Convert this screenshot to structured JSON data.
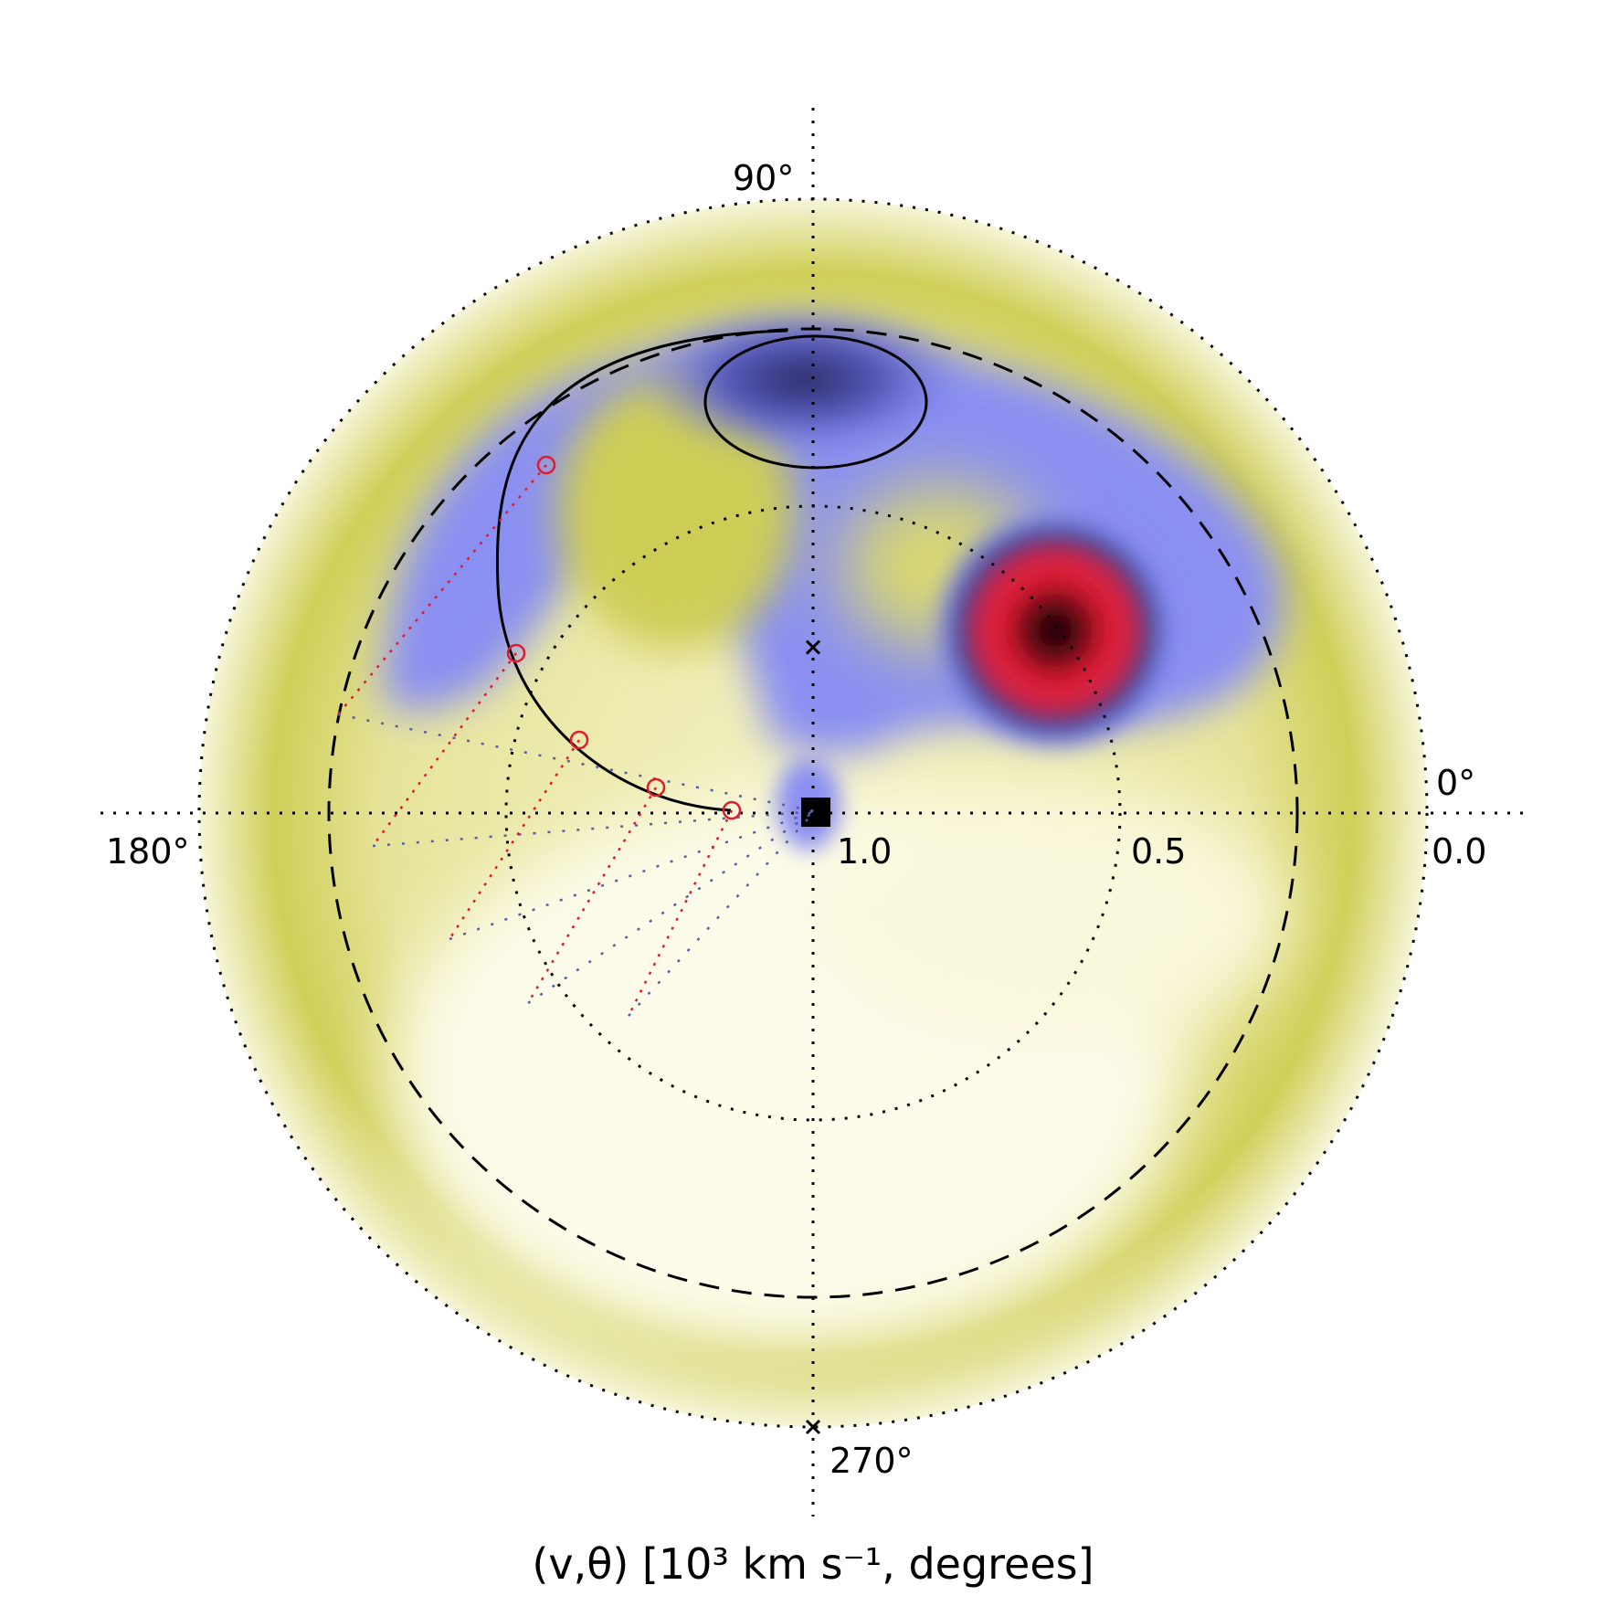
{
  "chart_data": {
    "type": "heatmap",
    "projection": "polar",
    "xlabel": "(v,θ) [10³ km s⁻¹, degrees]",
    "angle_labels": [
      "0°",
      "90°",
      "180°",
      "270°"
    ],
    "radius_labels": [
      "1.0",
      "0.5",
      "0.0"
    ],
    "radius_axis": "velocity decreases outward: 1.0 at center, 0.0 at outer edge",
    "grid": true,
    "colormap": [
      "#fefde8",
      "#f1efb8",
      "#bfc030",
      "#8a8ff2",
      "#7a80ea",
      "#2a2a66",
      "#e01a30",
      "#000000"
    ],
    "peaks": [
      {
        "label": "primary maximum",
        "velocity": 0.45,
        "angle_deg": 35,
        "color": "#000000"
      },
      {
        "label": "secondary maximum",
        "velocity": 0.73,
        "angle_deg": 90,
        "color": "#2a2a66"
      }
    ],
    "markers": [
      {
        "velocity": 0.73,
        "angle_deg": 90,
        "symbol": "x"
      },
      {
        "velocity": 0.0,
        "angle_deg": 270,
        "symbol": "x"
      },
      {
        "velocity": 1.0,
        "angle_deg": 0,
        "symbol": "square"
      }
    ],
    "reference_circles": [
      {
        "velocity": 0.6,
        "style": "dashed"
      },
      {
        "velocity": 0.5,
        "style": "dotted"
      },
      {
        "velocity": 0.0,
        "style": "dotted"
      }
    ],
    "stream_circle_points": 5
  }
}
